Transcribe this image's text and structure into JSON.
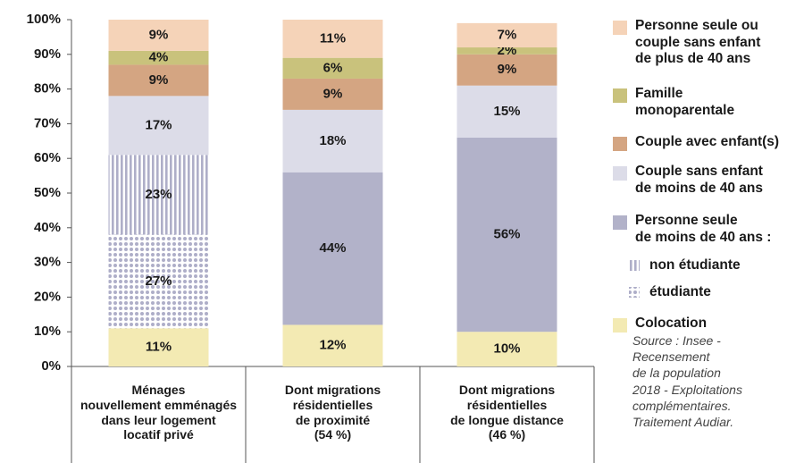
{
  "chart_data": {
    "type": "stacked_bar",
    "categories": [
      "Ménages\nnouvellement emménagés\ndans leur logement\nlocatif privé",
      "Dont migrations\nrésidentielles\nde proximité\n(54 %)",
      "Dont migrations\nrésidentielles\nde longue distance\n(46 %)"
    ],
    "series": [
      {
        "name": "Colocation",
        "color": "#f3eab3",
        "values": [
          11,
          12,
          10
        ],
        "value_labels": [
          "11%",
          "12%",
          "10%"
        ]
      },
      {
        "name": "étudiante",
        "color": "#aeaec8",
        "pattern": "dots",
        "values": [
          27,
          null,
          null
        ],
        "value_labels": [
          "27%",
          null,
          null
        ]
      },
      {
        "name": "non étudiante",
        "color": "#aeaec8",
        "pattern": "stripes",
        "values": [
          23,
          null,
          null
        ],
        "value_labels": [
          "23%",
          null,
          null
        ]
      },
      {
        "name": "Personne seule\nde moins de 40 ans :",
        "color": "#b2b2c9",
        "values": [
          null,
          44,
          56
        ],
        "value_labels": [
          null,
          "44%",
          "56%"
        ]
      },
      {
        "name": "Couple sans enfant\nde moins de 40 ans",
        "color": "#dcdce8",
        "values": [
          17,
          18,
          15
        ],
        "value_labels": [
          "17%",
          "18%",
          "15%"
        ]
      },
      {
        "name": "Couple avec enfant(s)",
        "color": "#d4a582",
        "values": [
          9,
          9,
          9
        ],
        "value_labels": [
          "9%",
          "9%",
          "9%"
        ]
      },
      {
        "name": "Famille\nmonoparentale",
        "color": "#c9c27c",
        "values": [
          4,
          6,
          2
        ],
        "value_labels": [
          "4%",
          "6%",
          "2%"
        ]
      },
      {
        "name": "Personne seule ou\ncouple sans enfant\nde plus de 40 ans",
        "color": "#f5d3b8",
        "values": [
          9,
          11,
          7
        ],
        "value_labels": [
          "9%",
          "11%",
          "7%"
        ]
      }
    ],
    "ylim": [
      0,
      100
    ],
    "yticks": [
      {
        "value": 0,
        "label": "0%"
      },
      {
        "value": 10,
        "label": "10%"
      },
      {
        "value": 20,
        "label": "20%"
      },
      {
        "value": 30,
        "label": "30%"
      },
      {
        "value": 40,
        "label": "40%"
      },
      {
        "value": 50,
        "label": "50%"
      },
      {
        "value": 60,
        "label": "60%"
      },
      {
        "value": 70,
        "label": "70%"
      },
      {
        "value": 80,
        "label": "80%"
      },
      {
        "value": 90,
        "label": "90%"
      },
      {
        "value": 100,
        "label": "100%"
      }
    ],
    "source": "Source : Insee -\nRecensement\nde la population\n2018 - Exploitations\ncomplémentaires.\nTraitement Audiar."
  }
}
